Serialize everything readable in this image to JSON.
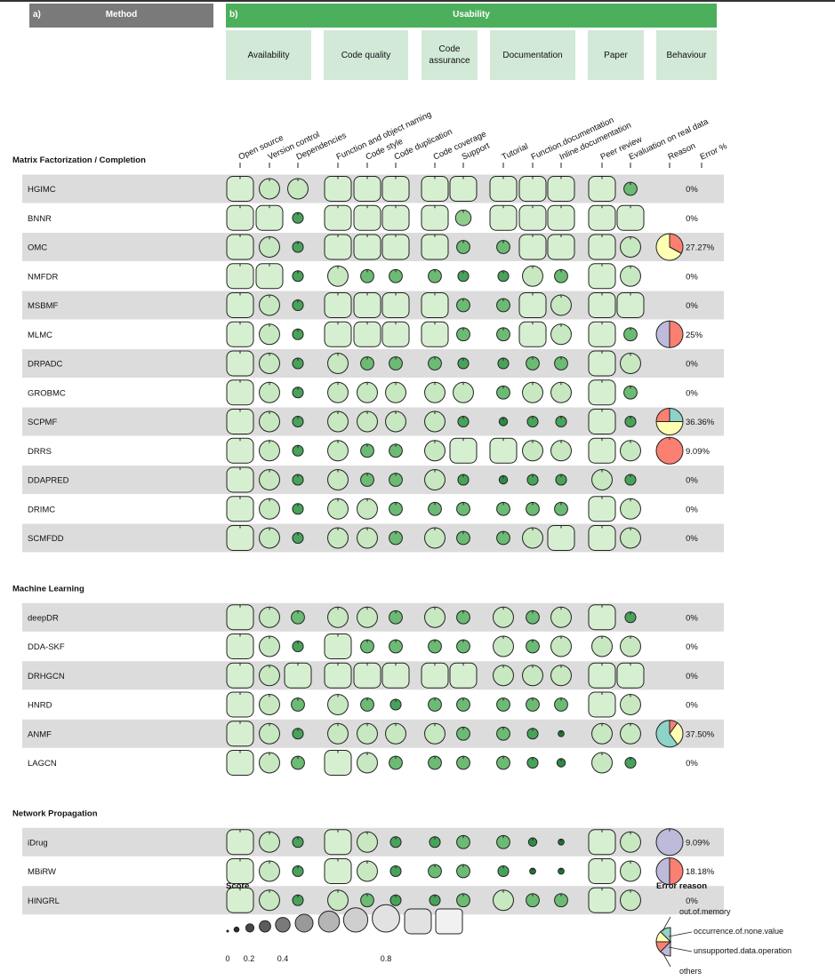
{
  "header": {
    "method_panel": "a)",
    "method_title": "Method",
    "usability_panel": "b)",
    "usability_title": "Usability",
    "groups": [
      "Availability",
      "Code quality",
      "Code assurance",
      "Documentation",
      "Paper",
      "Behaviour"
    ]
  },
  "colors": {
    "header_gray": "#7a7a7a",
    "header_green": "#4caf5b",
    "subheader_green": "#d2e9d8",
    "row_band": "#dcdcdc",
    "score_scale": [
      "#1f7a35",
      "#2e8b44",
      "#48a35a",
      "#6cbb74",
      "#8fcd8d",
      "#aedca7",
      "#c8e8c2",
      "#d7efd1"
    ],
    "legend_scale": [
      "#1a1a1a",
      "#2c2c2c",
      "#464646",
      "#5c5c5c",
      "#7a7a7a",
      "#999999",
      "#b5b5b5",
      "#cfcfcf",
      "#e2e2e2",
      "#f1f1f1"
    ],
    "reason_colors": {
      "out.of.memory": "#8dd3c7",
      "occurrence.of.none.value": "#ffffb3",
      "unsupported.data.operation": "#fb8072",
      "others": "#bebada"
    }
  },
  "chart_data": {
    "type": "table",
    "columns": [
      "Open source",
      "Version control",
      "Dependencies",
      "Function and object naming",
      "Code style",
      "Code duplication",
      "Code coverage",
      "Support",
      "Tutorial",
      "Function.documentation",
      "Inline.documentation",
      "Peer review",
      "Evaluation on real data",
      "Reason",
      "Error %"
    ],
    "column_groups": [
      {
        "name": "Availability",
        "columns": [
          0,
          1,
          2
        ]
      },
      {
        "name": "Code quality",
        "columns": [
          3,
          4,
          5
        ]
      },
      {
        "name": "Code assurance",
        "columns": [
          6,
          7
        ]
      },
      {
        "name": "Documentation",
        "columns": [
          8,
          9,
          10
        ]
      },
      {
        "name": "Paper",
        "columns": [
          11,
          12
        ]
      },
      {
        "name": "Behaviour",
        "columns": [
          13,
          14
        ]
      }
    ],
    "categories": [
      {
        "name": "Matrix Factorization / Completion",
        "methods": [
          {
            "name": "HGIMC",
            "scores": [
              1,
              0.7,
              0.7,
              1,
              1,
              1,
              1,
              1,
              1,
              1,
              1,
              1,
              0.4
            ],
            "error": "0%",
            "reasons": []
          },
          {
            "name": "BNNR",
            "scores": [
              1,
              1,
              0.3,
              1,
              1,
              1,
              1,
              0.5,
              1,
              1,
              1,
              1,
              1
            ],
            "error": "0%",
            "reasons": []
          },
          {
            "name": "OMC",
            "scores": [
              1,
              0.7,
              0.3,
              1,
              1,
              1,
              1,
              0.4,
              0.4,
              1,
              1,
              1,
              0.7
            ],
            "error": "27.27%",
            "reasons": [
              {
                "reason": "unsupported.data.operation",
                "fraction": 0.33
              },
              {
                "reason": "occurrence.of.none.value",
                "fraction": 0.67
              }
            ]
          },
          {
            "name": "NMFDR",
            "scores": [
              1,
              1,
              0.3,
              0.7,
              0.4,
              0.4,
              0.4,
              0.3,
              0.3,
              0.7,
              0.4,
              1,
              0.7
            ],
            "error": "0%",
            "reasons": []
          },
          {
            "name": "MSBMF",
            "scores": [
              1,
              0.7,
              0.3,
              1,
              1,
              1,
              1,
              0.4,
              0.4,
              1,
              0.7,
              1,
              1
            ],
            "error": "0%",
            "reasons": []
          },
          {
            "name": "MLMC",
            "scores": [
              1,
              0.7,
              0.3,
              1,
              1,
              1,
              1,
              0.4,
              0.4,
              1,
              0.7,
              1,
              0.4
            ],
            "error": "25%",
            "reasons": [
              {
                "reason": "unsupported.data.operation",
                "fraction": 0.5
              },
              {
                "reason": "others",
                "fraction": 0.5
              }
            ]
          },
          {
            "name": "DRPADC",
            "scores": [
              1,
              0.7,
              0.3,
              0.7,
              0.4,
              0.4,
              0.4,
              0.3,
              0.3,
              0.4,
              0.4,
              1,
              0.7
            ],
            "error": "0%",
            "reasons": []
          },
          {
            "name": "GROBMC",
            "scores": [
              1,
              0.7,
              0.3,
              0.7,
              0.7,
              0.7,
              0.7,
              0.7,
              0.4,
              0.7,
              0.7,
              1,
              0.4
            ],
            "error": "0%",
            "reasons": []
          },
          {
            "name": "SCPMF",
            "scores": [
              1,
              0.7,
              0.3,
              0.7,
              0.7,
              0.7,
              0.7,
              0.3,
              0.2,
              0.3,
              0.3,
              1,
              0.3
            ],
            "error": "36.36%",
            "reasons": [
              {
                "reason": "out.of.memory",
                "fraction": 0.25
              },
              {
                "reason": "occurrence.of.none.value",
                "fraction": 0.5
              },
              {
                "reason": "unsupported.data.operation",
                "fraction": 0.25
              }
            ]
          },
          {
            "name": "DRRS",
            "scores": [
              1,
              0.7,
              0.3,
              0.7,
              0.4,
              0.4,
              0.7,
              1,
              1,
              0.7,
              0.7,
              1,
              0.7
            ],
            "error": "9.09%",
            "reasons": [
              {
                "reason": "unsupported.data.operation",
                "fraction": 1
              }
            ]
          },
          {
            "name": "DDAPRED",
            "scores": [
              1,
              0.7,
              0.3,
              0.7,
              0.4,
              0.4,
              0.7,
              0.3,
              0.2,
              0.3,
              0.3,
              0.7,
              0.3
            ],
            "error": "0%",
            "reasons": []
          },
          {
            "name": "DRIMC",
            "scores": [
              1,
              0.7,
              0.3,
              0.7,
              0.7,
              0.4,
              0.4,
              0.4,
              0.4,
              0.4,
              0.4,
              1,
              0.7
            ],
            "error": "0%",
            "reasons": []
          },
          {
            "name": "SCMFDD",
            "scores": [
              1,
              0.7,
              0.3,
              0.7,
              0.7,
              0.4,
              0.7,
              0.4,
              0.4,
              0.7,
              1,
              1,
              0.7
            ],
            "error": "0%",
            "reasons": []
          }
        ]
      },
      {
        "name": "Machine Learning",
        "methods": [
          {
            "name": "deepDR",
            "scores": [
              1,
              0.7,
              0.4,
              0.7,
              0.7,
              0.4,
              0.7,
              0.4,
              0.7,
              0.4,
              0.7,
              1,
              0.3
            ],
            "error": "0%",
            "reasons": []
          },
          {
            "name": "DDA-SKF",
            "scores": [
              1,
              0.7,
              0.3,
              1,
              0.4,
              0.4,
              0.4,
              0.4,
              0.7,
              0.4,
              0.7,
              0.7,
              0.7
            ],
            "error": "0%",
            "reasons": []
          },
          {
            "name": "DRHGCN",
            "scores": [
              1,
              0.7,
              1,
              1,
              1,
              1,
              1,
              1,
              0.7,
              0.7,
              0.7,
              1,
              1
            ],
            "error": "0%",
            "reasons": []
          },
          {
            "name": "HNRD",
            "scores": [
              1,
              0.7,
              0.4,
              0.7,
              0.4,
              0.3,
              0.4,
              0.4,
              0.4,
              0.4,
              0.4,
              1,
              0.7
            ],
            "error": "0%",
            "reasons": []
          },
          {
            "name": "ANMF",
            "scores": [
              1,
              0.7,
              0.3,
              0.7,
              0.7,
              0.7,
              0.7,
              0.4,
              0.4,
              0.3,
              0.1,
              0.7,
              0.7
            ],
            "error": "37.50%",
            "reasons": [
              {
                "reason": "unsupported.data.operation",
                "fraction": 0.1
              },
              {
                "reason": "occurrence.of.none.value",
                "fraction": 0.3
              },
              {
                "reason": "out.of.memory",
                "fraction": 0.6
              }
            ]
          },
          {
            "name": "LAGCN",
            "scores": [
              1,
              0.7,
              0.4,
              1,
              0.7,
              0.4,
              0.4,
              0.4,
              0.4,
              0.3,
              0.2,
              0.7,
              0.3
            ],
            "error": "0%",
            "reasons": []
          }
        ]
      },
      {
        "name": "Network Propagation",
        "methods": [
          {
            "name": "iDrug",
            "scores": [
              1,
              0.7,
              0.3,
              1,
              0.7,
              0.3,
              0.3,
              0.4,
              0.4,
              0.2,
              0.1,
              1,
              0.7
            ],
            "error": "9.09%",
            "reasons": [
              {
                "reason": "others",
                "fraction": 1
              }
            ]
          },
          {
            "name": "MBiRW",
            "scores": [
              1,
              0.7,
              0.3,
              1,
              0.7,
              0.3,
              0.4,
              0.4,
              0.3,
              0.1,
              0.1,
              1,
              0.7
            ],
            "error": "18.18%",
            "reasons": [
              {
                "reason": "unsupported.data.operation",
                "fraction": 0.5
              },
              {
                "reason": "others",
                "fraction": 0.5
              }
            ]
          },
          {
            "name": "HINGRL",
            "scores": [
              1,
              0.7,
              0.3,
              0.7,
              0.4,
              0.3,
              0.3,
              0.4,
              0.7,
              0.4,
              0.4,
              1,
              0.7
            ],
            "error": "0%",
            "reasons": []
          }
        ]
      }
    ],
    "legend": {
      "score_title": "Score",
      "score_ticks": [
        "0",
        "0.2",
        "0.4",
        "0.8"
      ],
      "score_levels": [
        0,
        0.1,
        0.2,
        0.3,
        0.4,
        0.5,
        0.6,
        0.7,
        0.8,
        1
      ],
      "reason_title": "Error reason",
      "reasons": [
        "out.of.memory",
        "occurrence.of.none.value",
        "unsupported.data.operation",
        "others"
      ]
    }
  }
}
